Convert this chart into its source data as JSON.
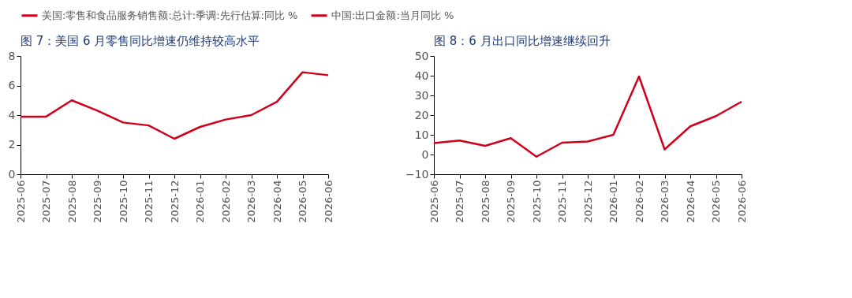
{
  "chart_data": [
    {
      "type": "line",
      "title": "图 7：美国 6 月零售同比增速仍维持较高水平",
      "categories": [
        "2025-06",
        "2025-07",
        "2025-08",
        "2025-09",
        "2025-10",
        "2025-11",
        "2025-12",
        "2026-01",
        "2026-02",
        "2026-03",
        "2026-04",
        "2026-05",
        "2026-06"
      ],
      "series": [
        {
          "name": "美国:零售和食品服务销售额:总计:季调:先行估算:同比 %",
          "color": "#d0021b",
          "values": [
            3.9,
            3.9,
            5.0,
            4.3,
            3.5,
            3.3,
            2.4,
            3.2,
            3.7,
            4.0,
            4.9,
            6.9,
            6.7
          ]
        }
      ],
      "ylim": [
        0,
        8
      ],
      "yticks": [
        0,
        2,
        4,
        6,
        8
      ],
      "grid": false,
      "legend": "top",
      "marker": "none"
    },
    {
      "type": "line",
      "title": "图 8：6 月出口同比增速继续回升",
      "categories": [
        "2025-06",
        "2025-07",
        "2025-08",
        "2025-09",
        "2025-10",
        "2025-11",
        "2025-12",
        "2026-01",
        "2026-02",
        "2026-03",
        "2026-04",
        "2026-05",
        "2026-06"
      ],
      "series": [
        {
          "name": "中国:出口金额:当月同比 %",
          "color": "#d0021b",
          "values": [
            5.8,
            7.1,
            4.4,
            8.3,
            -1.1,
            6.0,
            6.6,
            10.0,
            39.6,
            2.6,
            14.3,
            19.5,
            26.8
          ]
        }
      ],
      "ylim": [
        -10,
        50
      ],
      "yticks": [
        -10,
        0,
        10,
        20,
        30,
        40,
        50
      ],
      "grid": false,
      "legend": "top",
      "marker": "none"
    }
  ]
}
